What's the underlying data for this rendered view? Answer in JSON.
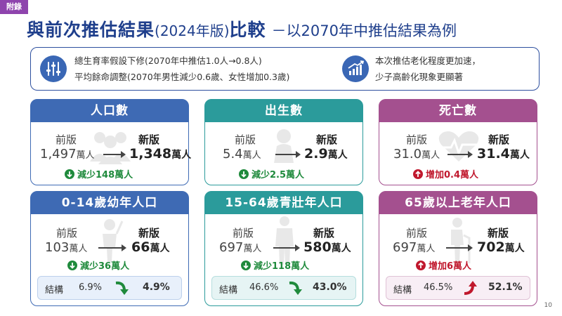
{
  "tag": "附錄",
  "title": {
    "main_a": "與前次推估結果",
    "version": "(2024年版)",
    "main_b": "比較",
    "subtitle": "－以2070年中推估結果為例"
  },
  "summary": {
    "line1": "總生育率假設下修(2070年中推估1.0人→0.8人)",
    "line2": "平均餘命調整(2070年男性減少0.6歲、女性增加0.3歲)",
    "right1": "本次推估老化程度更加速，",
    "right2": "少子高齡化現象更顯著",
    "icon_left": "sliders-icon",
    "icon_right": "growth-chart-icon"
  },
  "labels": {
    "old": "前版",
    "new": "新版",
    "structure": "結構"
  },
  "cards": [
    {
      "title": "人口數",
      "old_n": "1,497",
      "old_u": "萬人",
      "new_n": "1,348",
      "new_u": "萬人",
      "change": "減少148萬人",
      "dir": "down",
      "color": "#3e6ab4",
      "icon": "group-people-icon"
    },
    {
      "title": "出生數",
      "old_n": "5.4",
      "old_u": "萬人",
      "new_n": "2.9",
      "new_u": "萬人",
      "change": "減少2.5萬人",
      "dir": "down",
      "color": "#2b9b9b",
      "icon": "baby-icon"
    },
    {
      "title": "死亡數",
      "old_n": "31.0",
      "old_u": "萬人",
      "new_n": "31.4",
      "new_u": "萬人",
      "change": "增加0.4萬人",
      "dir": "up",
      "color": "#a4508f",
      "icon": "heartbeat-icon"
    },
    {
      "title": "0-14歲幼年人口",
      "old_n": "103",
      "old_u": "萬人",
      "new_n": "66",
      "new_u": "萬人",
      "change": "減少36萬人",
      "dir": "down",
      "color": "#3e6ab4",
      "icon": "child-icon",
      "struct_old": "6.9%",
      "struct_new": "4.9%"
    },
    {
      "title": "15-64歲青壯年人口",
      "old_n": "697",
      "old_u": "萬人",
      "new_n": "580",
      "new_u": "萬人",
      "change": "減少118萬人",
      "dir": "down",
      "color": "#2b9b9b",
      "icon": "adult-icon",
      "struct_old": "46.6%",
      "struct_new": "43.0%"
    },
    {
      "title": "65歲以上老年人口",
      "old_n": "697",
      "old_u": "萬人",
      "new_n": "702",
      "new_u": "萬人",
      "change": "增加6萬人",
      "dir": "up",
      "color": "#a4508f",
      "icon": "elderly-icon",
      "struct_old": "46.5%",
      "struct_new": "52.1%"
    }
  ],
  "page_number": "10"
}
